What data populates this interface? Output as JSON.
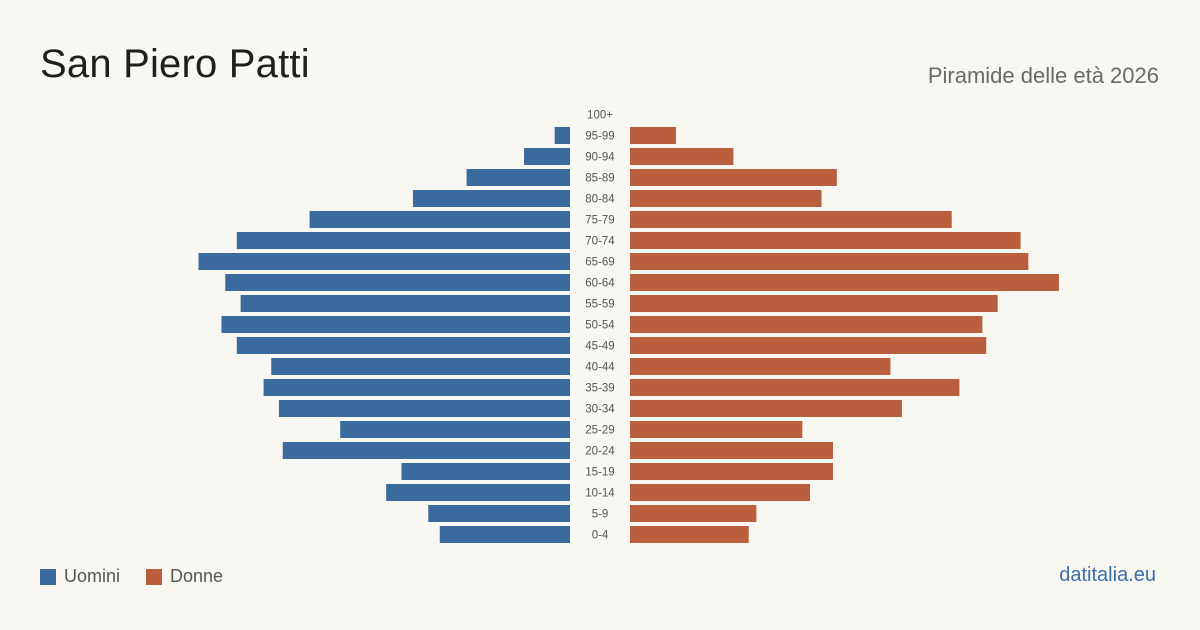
{
  "header": {
    "title": "San Piero Patti",
    "subtitle": "Piramide delle età 2026"
  },
  "legend": {
    "men_label": "Uomini",
    "women_label": "Donne"
  },
  "brand": "datitalia.eu",
  "colors": {
    "men": "#3b6a9c",
    "women": "#bb5e3e",
    "background": "#f9f7f2"
  },
  "chart_data": {
    "type": "bar",
    "orientation": "horizontal-pyramid",
    "title": "San Piero Patti",
    "subtitle": "Piramide delle età 2026",
    "categories": [
      "100+",
      "95-99",
      "90-94",
      "85-89",
      "80-84",
      "75-79",
      "70-74",
      "65-69",
      "60-64",
      "55-59",
      "50-54",
      "45-49",
      "40-44",
      "35-39",
      "30-34",
      "25-29",
      "20-24",
      "15-19",
      "10-14",
      "5-9",
      "0-4"
    ],
    "series": [
      {
        "name": "Uomini",
        "values": [
          0,
          4,
          12,
          27,
          41,
          68,
          87,
          97,
          90,
          86,
          91,
          87,
          78,
          80,
          76,
          60,
          75,
          44,
          48,
          37,
          34
        ]
      },
      {
        "name": "Donne",
        "values": [
          0,
          12,
          27,
          54,
          50,
          84,
          102,
          104,
          112,
          96,
          92,
          93,
          68,
          86,
          71,
          45,
          53,
          53,
          47,
          33,
          31
        ]
      }
    ],
    "legend": "bottom-left",
    "grid": false
  }
}
